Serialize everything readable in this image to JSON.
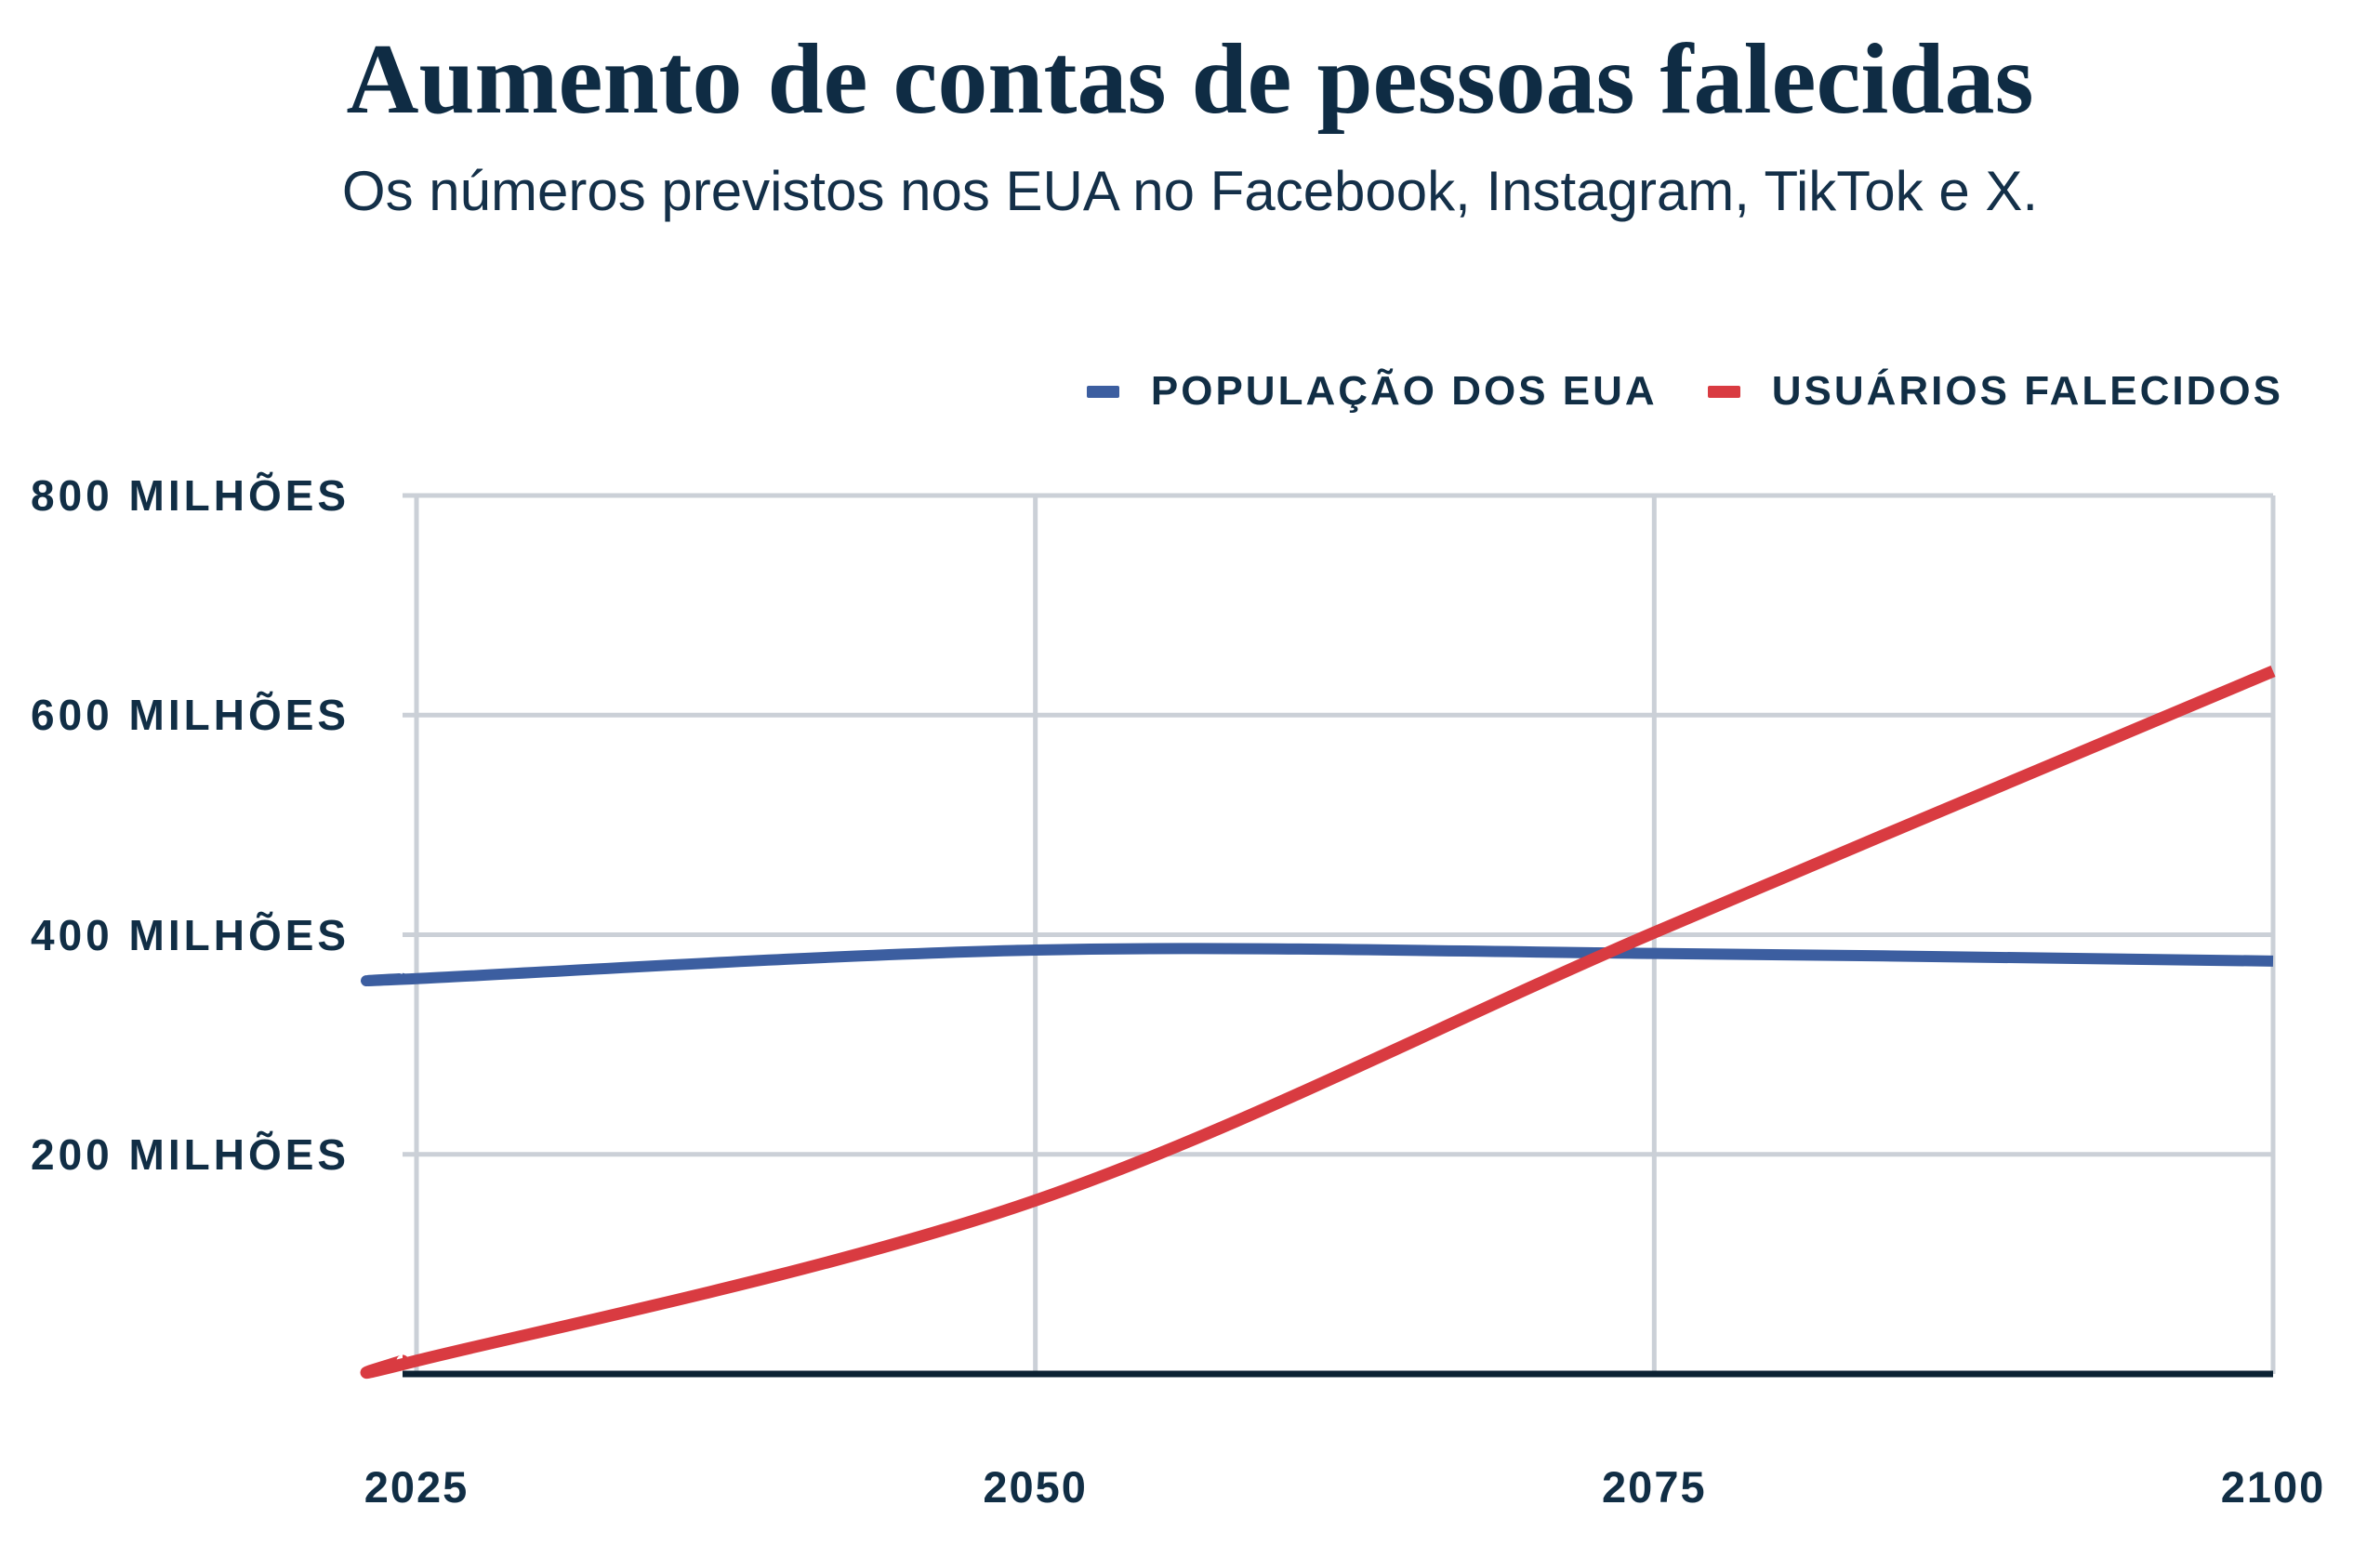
{
  "header": {
    "title": "Aumento de contas de pessoas falecidas",
    "subtitle": "Os números previstos nos EUA no Facebook, Instagram, TikTok e X."
  },
  "legend": {
    "items": [
      {
        "label": "POPULAÇÃO DOS EUA",
        "color": "#3c5ea0"
      },
      {
        "label": "USUÁRIOS FALECIDOS",
        "color": "#d93b41"
      }
    ]
  },
  "colors": {
    "text_navy": "#112e45",
    "title_navy": "#0f2c44",
    "gridline": "#cbd0d7",
    "bottom_axis": "#0c2233",
    "population_line": "#3c5ea0",
    "deceased_line": "#d93b41",
    "background": "#ffffff"
  },
  "chart_data": {
    "type": "line",
    "title": "Aumento de contas de pessoas falecidas",
    "subtitle": "Os números previstos nos EUA no Facebook, Instagram, TikTok e X.",
    "xlabel": "",
    "ylabel": "",
    "unit": "milhões",
    "x": [
      2025,
      2050,
      2075,
      2100
    ],
    "x_tick_labels": [
      "2025",
      "2050",
      "2075",
      "2100"
    ],
    "series": [
      {
        "name": "POPULAÇÃO DOS EUA",
        "color": "#3c5ea0",
        "values": [
          360,
          386,
          383,
          376
        ]
      },
      {
        "name": "USUÁRIOS FALECIDOS",
        "color": "#d93b41",
        "values": [
          12,
          158,
          402,
          640
        ]
      }
    ],
    "y_ticks": [
      {
        "value": 200,
        "label": "200 MILHÕES"
      },
      {
        "value": 400,
        "label": "400 MILHÕES"
      },
      {
        "value": 600,
        "label": "600 MILHÕES"
      },
      {
        "value": 800,
        "label": "800 MILHÕES"
      }
    ],
    "ylim": [
      0,
      800
    ],
    "xlim": [
      2025,
      2100
    ],
    "grid": true,
    "legend_position": "top-right"
  }
}
